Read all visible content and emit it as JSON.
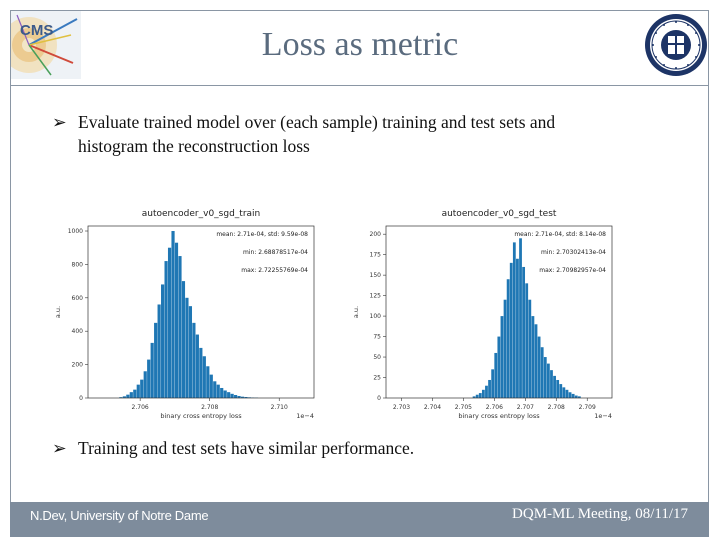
{
  "slide": {
    "title": "Loss as metric",
    "bullets": [
      {
        "arrow": "➢",
        "lines": [
          "Evaluate trained model over (each sample) training and test sets  and",
          "histogram the reconstruction loss"
        ]
      },
      {
        "arrow": "➢",
        "lines": [
          "Training and test sets have similar performance."
        ]
      }
    ],
    "footer": {
      "left": "N.Dev, University of Notre Dame",
      "right": "DQM-ML Meeting, 08/11/17"
    },
    "colors": {
      "frame": "#8a96a4",
      "title": "#5a6b7e",
      "footer": "#7e8c9c",
      "bars": "#1f77b4"
    },
    "logos": [
      "cms-logo",
      "notre-dame-seal"
    ]
  },
  "chart_data": [
    {
      "type": "bar",
      "title": "autoencoder_v0_sgd_train",
      "xlabel": "binary cross entropy loss",
      "ylabel": "a.u.",
      "offset_text": "1e−4",
      "xlim": [
        2.7045,
        2.711
      ],
      "ylim": [
        0,
        1030
      ],
      "xticks": [
        2.706,
        2.708,
        2.71
      ],
      "xtick_labels": [
        "2.706",
        "2.708",
        "2.710"
      ],
      "yticks": [
        0,
        200,
        400,
        600,
        800,
        1000
      ],
      "annotations": [
        "mean: 2.71e-04, std: 9.59e-08",
        "min: 2.68878517e-04",
        "max: 2.72255769e-04"
      ],
      "bin_start": 2.7054,
      "bin_width": 0.0001,
      "values": [
        5,
        10,
        20,
        35,
        50,
        80,
        110,
        160,
        230,
        330,
        450,
        560,
        680,
        820,
        900,
        1000,
        930,
        850,
        700,
        600,
        550,
        450,
        380,
        300,
        250,
        190,
        140,
        100,
        80,
        60,
        45,
        35,
        25,
        18,
        12,
        8,
        6,
        4,
        3,
        2
      ]
    },
    {
      "type": "bar",
      "title": "autoencoder_v0_sgd_test",
      "xlabel": "binary cross entropy loss",
      "ylabel": "a.u.",
      "offset_text": "1e−4",
      "xlim": [
        2.7025,
        2.7098
      ],
      "ylim": [
        0,
        210
      ],
      "xticks": [
        2.703,
        2.704,
        2.705,
        2.706,
        2.707,
        2.708,
        2.709
      ],
      "xtick_labels": [
        "2.703",
        "2.704",
        "2.705",
        "2.706",
        "2.707",
        "2.708",
        "2.709"
      ],
      "yticks": [
        0,
        25,
        50,
        75,
        100,
        125,
        150,
        175,
        200
      ],
      "annotations": [
        "mean: 2.71e-04, std: 8.14e-08",
        "min: 2.70302413e-04",
        "max: 2.70982957e-04"
      ],
      "bin_start": 2.7053,
      "bin_width": 0.0001,
      "values": [
        2,
        4,
        6,
        10,
        15,
        22,
        35,
        55,
        75,
        100,
        120,
        145,
        165,
        190,
        170,
        195,
        160,
        140,
        120,
        100,
        90,
        75,
        62,
        50,
        42,
        34,
        27,
        22,
        17,
        13,
        10,
        7,
        5,
        3,
        2
      ]
    }
  ]
}
